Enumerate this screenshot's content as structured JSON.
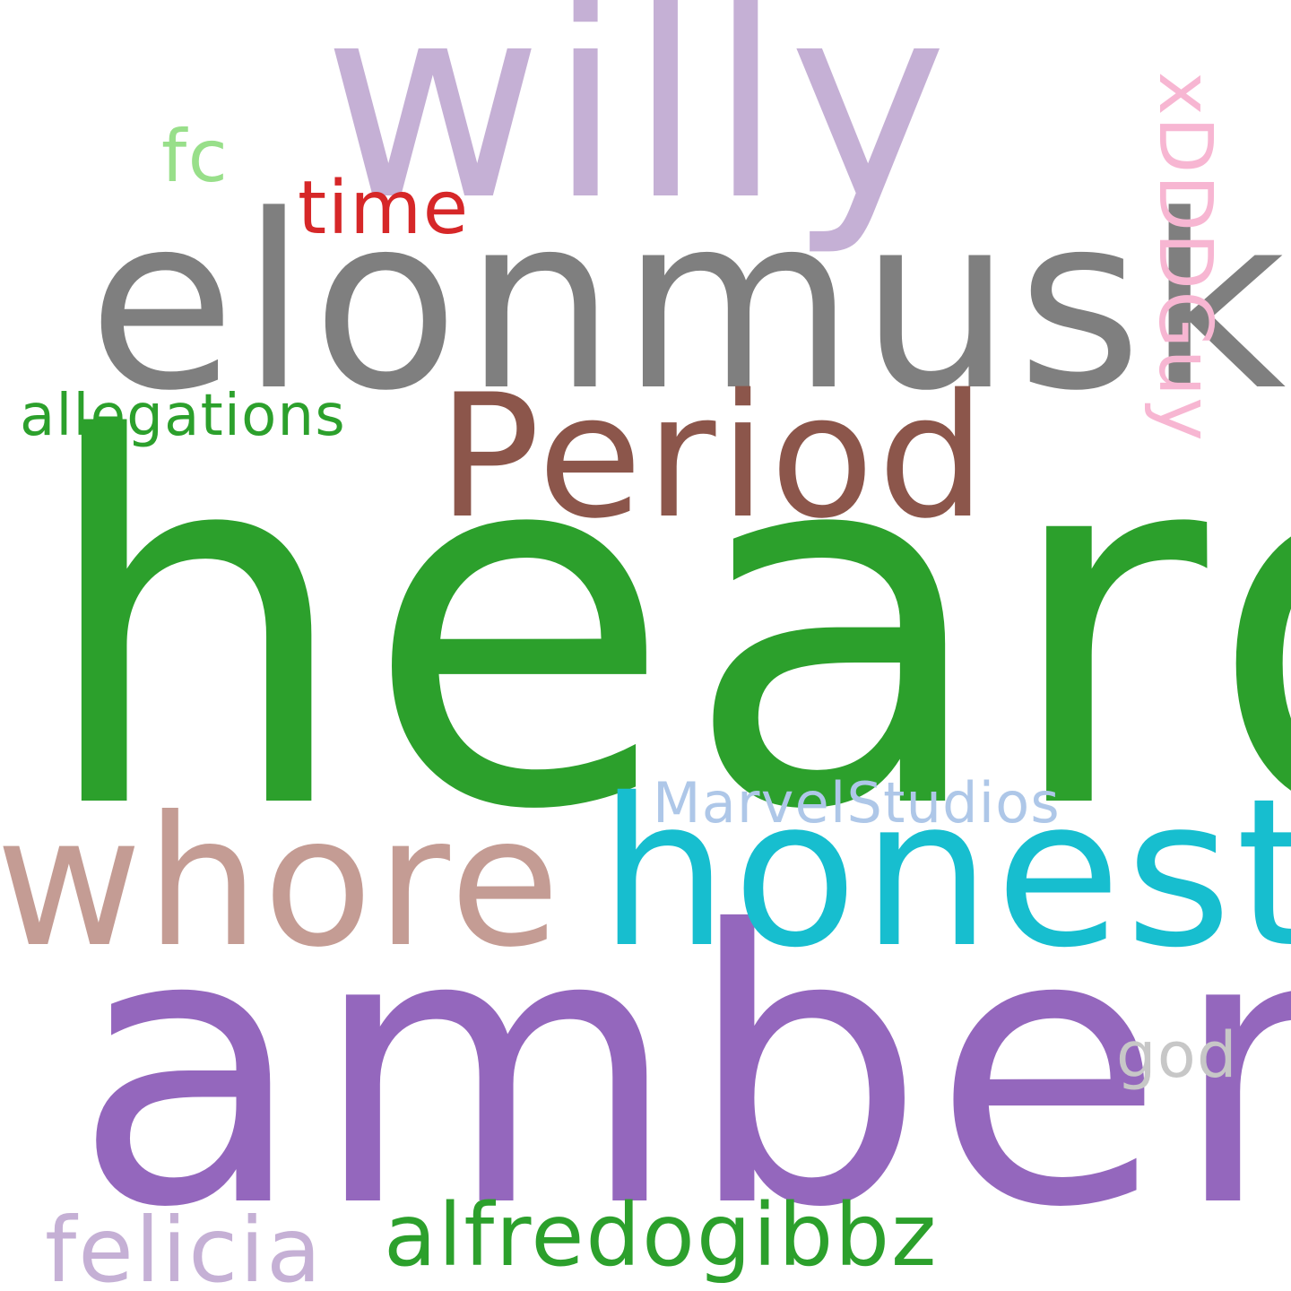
{
  "words": {
    "willy": {
      "text": "willy",
      "color": "#c5b0d5"
    },
    "fc": {
      "text": "fc",
      "color": "#98df8a"
    },
    "time": {
      "text": "time",
      "color": "#d62728"
    },
    "xdddguy": {
      "text": "xDDDGuy",
      "color": "#f7b6d2"
    },
    "elonmusk": {
      "text": "elonmusk",
      "color": "#7f7f7f"
    },
    "allegations": {
      "text": "allegations",
      "color": "#2ca02c"
    },
    "period": {
      "text": "Period",
      "color": "#8c564b"
    },
    "heard": {
      "text": "heard",
      "color": "#2ca02c"
    },
    "marvelstudios": {
      "text": "MarvelStudios",
      "color": "#aec7e8"
    },
    "whore": {
      "text": "whore",
      "color": "#c49c94"
    },
    "honest": {
      "text": "honest",
      "color": "#17becf"
    },
    "amber": {
      "text": "amber",
      "color": "#9467bd"
    },
    "god": {
      "text": "god",
      "color": "#c7c7c7"
    },
    "alfredogibbz": {
      "text": "alfredogibbz",
      "color": "#2ca02c"
    },
    "felicia": {
      "text": "felicia",
      "color": "#c5b0d5"
    }
  }
}
